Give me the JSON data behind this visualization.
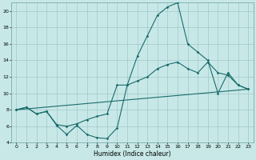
{
  "xlabel": "Humidex (Indice chaleur)",
  "background_color": "#c8e8e8",
  "grid_color": "#a0c8c8",
  "line_color": "#1a6b6b",
  "xlim": [
    -0.5,
    23.5
  ],
  "ylim": [
    4,
    21
  ],
  "xticks": [
    0,
    1,
    2,
    3,
    4,
    5,
    6,
    7,
    8,
    9,
    10,
    11,
    12,
    13,
    14,
    15,
    16,
    17,
    18,
    19,
    20,
    21,
    22,
    23
  ],
  "yticks": [
    4,
    6,
    8,
    10,
    12,
    14,
    16,
    18,
    20
  ],
  "series1_x": [
    0,
    1,
    2,
    3,
    4,
    5,
    6,
    7,
    8,
    9,
    10,
    11,
    12,
    13,
    14,
    15,
    16,
    17,
    18,
    19,
    20,
    21,
    22,
    23
  ],
  "series1_y": [
    8.0,
    8.3,
    7.5,
    7.8,
    6.1,
    5.0,
    6.1,
    5.0,
    4.6,
    4.5,
    5.8,
    11.0,
    14.5,
    17.0,
    19.5,
    20.5,
    21.0,
    16.0,
    15.0,
    14.0,
    10.0,
    12.5,
    11.0,
    10.5
  ],
  "series2_x": [
    0,
    1,
    2,
    3,
    4,
    5,
    6,
    7,
    8,
    9,
    10,
    11,
    12,
    13,
    14,
    15,
    16,
    17,
    18,
    19,
    20,
    21,
    22,
    23
  ],
  "series2_y": [
    8.0,
    8.3,
    7.5,
    7.8,
    6.2,
    6.0,
    6.3,
    6.8,
    7.2,
    7.5,
    11.0,
    11.0,
    11.5,
    12.0,
    13.0,
    13.5,
    13.8,
    13.0,
    12.5,
    13.8,
    12.5,
    12.2,
    11.0,
    10.5
  ],
  "series3_x": [
    0,
    23
  ],
  "series3_y": [
    8.0,
    10.5
  ]
}
